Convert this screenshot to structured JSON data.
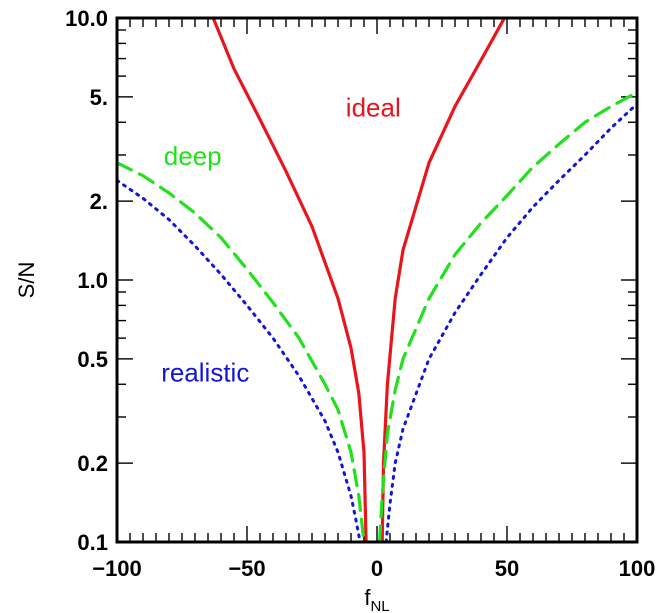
{
  "chart_data": {
    "type": "line",
    "title": "",
    "xlabel": "f",
    "xlabel_subscript": "NL",
    "ylabel": "S/N",
    "xlim": [
      -100,
      100
    ],
    "ylim": [
      0.1,
      10.0
    ],
    "yscale": "log",
    "grid": false,
    "x_ticks": [
      -100,
      -50,
      0,
      50,
      100
    ],
    "x_tick_labels": [
      "−100",
      "−50",
      "0",
      "50",
      "100"
    ],
    "y_ticks": [
      0.1,
      0.2,
      0.5,
      1.0,
      2.0,
      5.0,
      10.0
    ],
    "y_tick_labels": [
      "0.1",
      "0.2",
      "0.5",
      "1.0",
      "2.",
      "5.",
      "10.0"
    ],
    "series": [
      {
        "name": "ideal",
        "color": "#e8151c",
        "style": "solid",
        "points": [
          [
            -63,
            10.0
          ],
          [
            -55,
            6.4
          ],
          [
            -45,
            4.1
          ],
          [
            -35,
            2.6
          ],
          [
            -25,
            1.6
          ],
          [
            -15,
            0.85
          ],
          [
            -10,
            0.55
          ],
          [
            -7,
            0.37
          ],
          [
            -5,
            0.22
          ],
          [
            -4.2,
            0.1
          ],
          [
            2.0,
            0.1
          ],
          [
            2.5,
            0.2
          ],
          [
            4,
            0.4
          ],
          [
            7,
            0.85
          ],
          [
            10,
            1.3
          ],
          [
            20,
            2.8
          ],
          [
            30,
            4.6
          ],
          [
            40,
            6.9
          ],
          [
            49,
            10.0
          ]
        ]
      },
      {
        "name": "deep",
        "color": "#22e01c",
        "style": "dashed",
        "points": [
          [
            -100,
            2.8
          ],
          [
            -90,
            2.5
          ],
          [
            -80,
            2.15
          ],
          [
            -70,
            1.8
          ],
          [
            -60,
            1.45
          ],
          [
            -50,
            1.1
          ],
          [
            -40,
            0.82
          ],
          [
            -30,
            0.6
          ],
          [
            -20,
            0.4
          ],
          [
            -15,
            0.32
          ],
          [
            -10,
            0.22
          ],
          [
            -7,
            0.15
          ],
          [
            -5,
            0.1
          ],
          [
            1.0,
            0.1
          ],
          [
            2,
            0.15
          ],
          [
            4,
            0.26
          ],
          [
            7,
            0.38
          ],
          [
            10,
            0.5
          ],
          [
            20,
            0.85
          ],
          [
            30,
            1.25
          ],
          [
            40,
            1.65
          ],
          [
            50,
            2.1
          ],
          [
            60,
            2.7
          ],
          [
            70,
            3.3
          ],
          [
            80,
            4.0
          ],
          [
            90,
            4.6
          ],
          [
            100,
            5.2
          ]
        ]
      },
      {
        "name": "realistic",
        "color": "#1515d8",
        "style": "dotted",
        "points": [
          [
            -100,
            2.4
          ],
          [
            -90,
            2.05
          ],
          [
            -80,
            1.7
          ],
          [
            -70,
            1.35
          ],
          [
            -60,
            1.05
          ],
          [
            -50,
            0.8
          ],
          [
            -40,
            0.6
          ],
          [
            -30,
            0.43
          ],
          [
            -20,
            0.29
          ],
          [
            -15,
            0.22
          ],
          [
            -10,
            0.15
          ],
          [
            -8,
            0.12
          ],
          [
            -6.5,
            0.1
          ],
          [
            3.5,
            0.1
          ],
          [
            5,
            0.14
          ],
          [
            7,
            0.2
          ],
          [
            10,
            0.27
          ],
          [
            20,
            0.5
          ],
          [
            30,
            0.75
          ],
          [
            40,
            1.05
          ],
          [
            50,
            1.45
          ],
          [
            60,
            1.9
          ],
          [
            70,
            2.4
          ],
          [
            80,
            3.0
          ],
          [
            90,
            3.8
          ],
          [
            100,
            4.7
          ]
        ]
      }
    ],
    "annotations": [
      {
        "text": "ideal",
        "color": "#e8151c",
        "x": -12,
        "y": 4.2
      },
      {
        "text": "deep",
        "color": "#22e01c",
        "x": -82,
        "y": 2.75
      },
      {
        "text": "realistic",
        "color": "#1515d8",
        "x": -83,
        "y": 0.41
      }
    ]
  }
}
